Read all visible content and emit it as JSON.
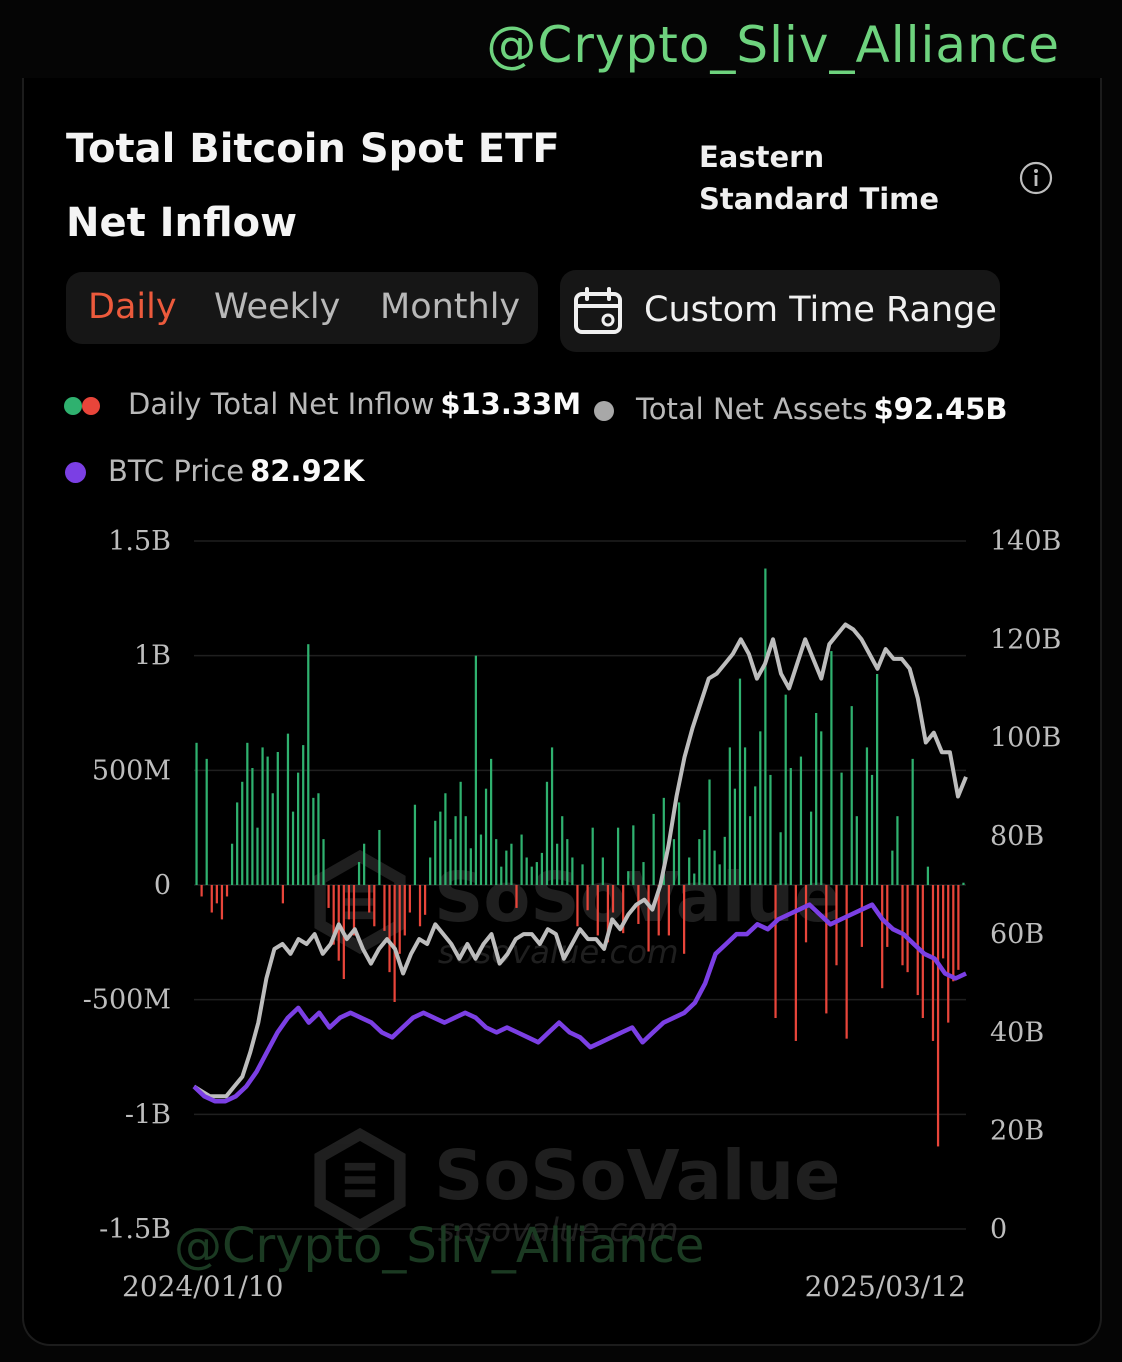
{
  "watermark": "@Crypto_Sliv_Alliance",
  "title": "Total Bitcoin Spot ETF Net Inflow",
  "timezone": "Eastern Standard Time",
  "periods": {
    "daily": "Daily",
    "weekly": "Weekly",
    "monthly": "Monthly",
    "active": "Daily"
  },
  "custom_range_label": "Custom Time Range",
  "legend": {
    "inflow_label": "Daily Total Net Inflow",
    "inflow_value": "$13.33M",
    "assets_label": "Total Net Assets",
    "assets_value": "$92.45B",
    "price_label": "BTC Price",
    "price_value": "82.92K"
  },
  "brand": {
    "name": "SoSoValue",
    "url": "sosovalue.com"
  },
  "colors": {
    "positive": "#2fb16f",
    "negative": "#e8453a",
    "assets_line": "#bdbdbd",
    "price_line": "#7b3fe4",
    "accent": "#ec5a3c"
  },
  "chart_data": {
    "type": "bar",
    "x_start": "2024/01/10",
    "x_end": "2025/03/12",
    "left_axis": {
      "ticks": [
        "1.5B",
        "1B",
        "500M",
        "0",
        "-500M",
        "-1B",
        "-1.5B"
      ],
      "range": [
        -1.5,
        1.5
      ],
      "unit": "B USD"
    },
    "right_axis": {
      "ticks": [
        "140B",
        "120B",
        "100B",
        "80B",
        "60B",
        "40B",
        "20B",
        "0"
      ],
      "range": [
        0,
        140
      ],
      "unit": "B USD"
    },
    "grid": true,
    "series": [
      {
        "name": "Daily Total Net Inflow",
        "axis": "left",
        "unit": "B USD",
        "values": [
          0.62,
          -0.05,
          0.55,
          -0.12,
          -0.08,
          -0.15,
          -0.05,
          0.18,
          0.36,
          0.45,
          0.62,
          0.51,
          0.25,
          0.6,
          0.56,
          0.4,
          0.58,
          -0.08,
          0.66,
          0.32,
          0.49,
          0.61,
          1.05,
          0.38,
          0.4,
          0.2,
          -0.1,
          -0.26,
          -0.33,
          -0.41,
          -0.15,
          -0.22,
          0.1,
          0.18,
          -0.12,
          -0.18,
          0.24,
          -0.2,
          -0.38,
          -0.51,
          -0.3,
          -0.22,
          -0.12,
          0.35,
          -0.18,
          -0.13,
          0.12,
          0.28,
          0.32,
          0.4,
          0.2,
          0.3,
          0.45,
          0.3,
          0.16,
          1.0,
          0.22,
          0.42,
          0.55,
          0.2,
          0.08,
          0.15,
          0.18,
          -0.1,
          0.22,
          0.12,
          0.08,
          0.1,
          0.14,
          0.45,
          0.6,
          0.18,
          0.3,
          0.2,
          0.12,
          -0.18,
          0.09,
          -0.11,
          0.25,
          -0.22,
          0.12,
          -0.25,
          -0.12,
          0.25,
          -0.21,
          0.06,
          0.26,
          -0.17,
          0.1,
          -0.29,
          0.31,
          -0.22,
          0.38,
          -0.22,
          0.2,
          0.36,
          -0.3,
          0.12,
          0.05,
          0.2,
          0.24,
          0.46,
          0.15,
          0.09,
          0.21,
          0.6,
          0.42,
          0.9,
          0.6,
          0.3,
          0.43,
          0.67,
          1.38,
          0.48,
          -0.58,
          0.23,
          0.83,
          0.51,
          -0.68,
          0.56,
          -0.25,
          0.32,
          0.75,
          0.67,
          -0.56,
          1.02,
          -0.35,
          0.49,
          -0.67,
          0.78,
          0.3,
          -0.27,
          0.6,
          0.48,
          0.92,
          -0.45,
          -0.27,
          0.15,
          0.3,
          -0.35,
          -0.38,
          0.55,
          -0.48,
          -0.58,
          0.08,
          -0.68,
          -1.14,
          -0.32,
          -0.6,
          -0.42,
          -0.37,
          0.01
        ]
      },
      {
        "name": "Total Net Assets",
        "axis": "right",
        "unit": "B USD",
        "values": [
          29,
          28,
          27,
          27,
          27,
          29,
          31,
          36,
          42,
          51,
          57,
          58,
          56,
          59,
          58,
          60,
          56,
          58,
          62,
          59,
          61,
          57,
          54,
          57,
          59,
          57,
          52,
          56,
          59,
          58,
          62,
          60,
          58,
          55,
          58,
          55,
          58,
          60,
          54,
          56,
          59,
          60,
          60,
          58,
          61,
          60,
          55,
          58,
          61,
          59,
          59,
          57,
          63,
          61,
          64,
          66,
          67,
          65,
          70,
          78,
          88,
          96,
          102,
          107,
          112,
          113,
          115,
          117,
          120,
          117,
          112,
          115,
          120,
          113,
          110,
          115,
          120,
          116,
          112,
          119,
          121,
          123,
          122,
          120,
          117,
          114,
          118,
          116,
          116,
          114,
          108,
          99,
          101,
          97,
          97,
          88,
          92
        ]
      },
      {
        "name": "BTC Price",
        "axis": "right",
        "unit": "chart scale, B",
        "values": [
          29,
          27,
          26,
          26,
          27,
          29,
          32,
          36,
          40,
          43,
          45,
          42,
          44,
          41,
          43,
          44,
          43,
          42,
          40,
          39,
          41,
          43,
          44,
          43,
          42,
          43,
          44,
          43,
          41,
          40,
          41,
          40,
          39,
          38,
          40,
          42,
          40,
          39,
          37,
          38,
          39,
          40,
          41,
          38,
          40,
          42,
          43,
          44,
          46,
          50,
          56,
          58,
          60,
          60,
          62,
          61,
          63,
          64,
          65,
          66,
          64,
          62,
          63,
          64,
          65,
          66,
          63,
          61,
          60,
          58,
          56,
          55,
          52,
          51,
          52
        ]
      }
    ]
  }
}
